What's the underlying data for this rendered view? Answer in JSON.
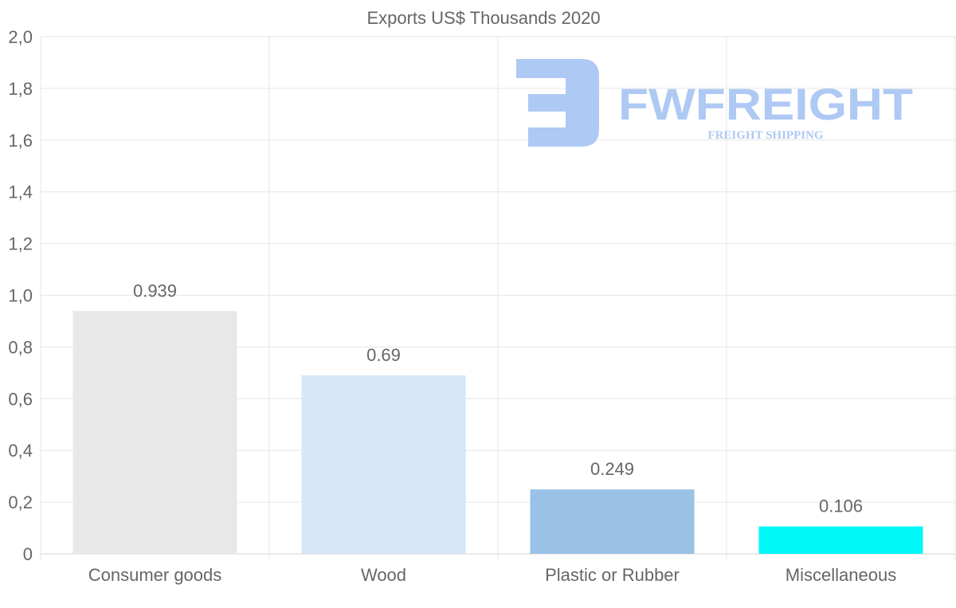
{
  "chart_data": {
    "type": "bar",
    "title": "Exports US$ Thousands 2020",
    "categories": [
      "Consumer goods",
      "Wood",
      "Plastic or Rubber",
      "Miscellaneous"
    ],
    "values": [
      0.939,
      0.69,
      0.249,
      0.106
    ],
    "data_labels": [
      "0.939",
      "0.69",
      "0.249",
      "0.106"
    ],
    "colors": [
      "#e8e8e8",
      "#d6e6f8",
      "#9ac2e6",
      "#00f8f8"
    ],
    "ylim": [
      0,
      2.0
    ],
    "yticks": [
      0,
      0.2,
      0.4,
      0.6,
      0.8,
      1.0,
      1.2,
      1.4,
      1.6,
      1.8,
      2.0
    ],
    "ytick_labels": [
      "0",
      "0,2",
      "0,4",
      "0,6",
      "0,8",
      "1,0",
      "1,2",
      "1,4",
      "1,6",
      "1,8",
      "2,0"
    ],
    "xlabel": "",
    "ylabel": "",
    "grid": true,
    "legend": "none"
  },
  "watermark": {
    "brand": "FWFREIGHT",
    "tagline": "FREIGHT SHIPPING",
    "color": "#aec9f3"
  }
}
